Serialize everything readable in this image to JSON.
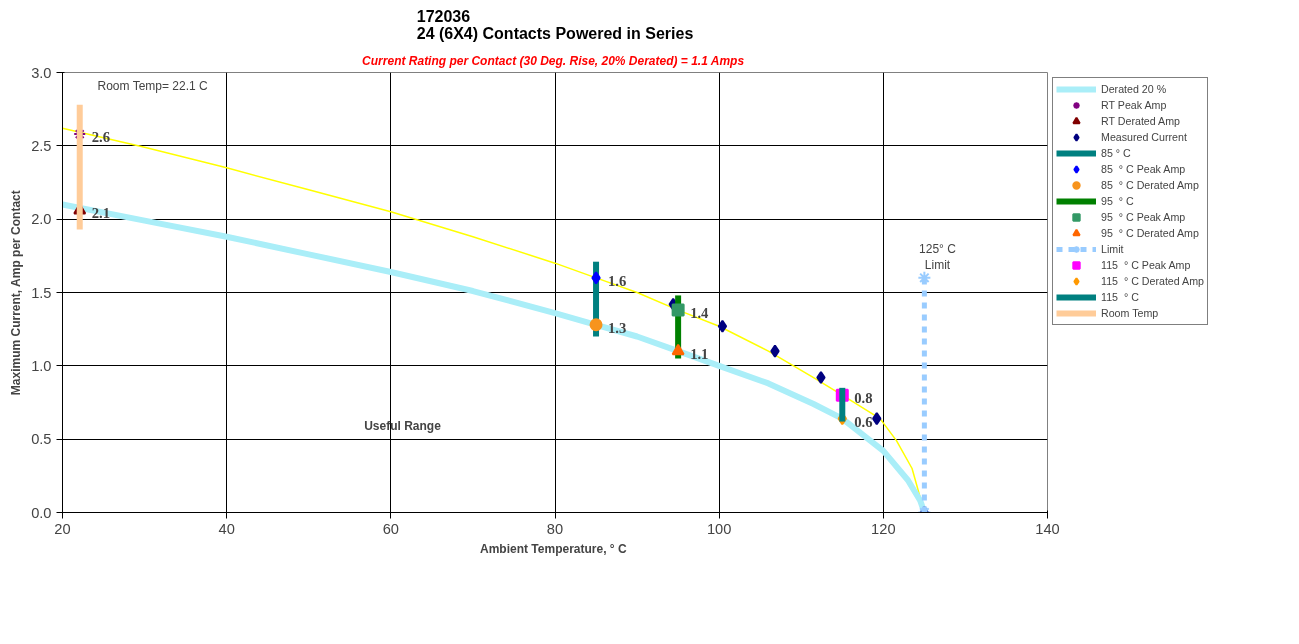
{
  "chart_data": {
    "type": "line",
    "title": "172036\n24 (6X4) Contacts Powered in Series",
    "subtitle": "Current Rating per Contact (30 Deg. Rise, 20% Derated)  = 1.1 Amps",
    "xlabel": "Ambient Temperature,  ° C",
    "ylabel": "Maximum Current, Amp per Contact",
    "xlim": [
      20,
      140
    ],
    "xticks": [
      20,
      40,
      60,
      80,
      100,
      120,
      140
    ],
    "ylim": [
      0,
      3
    ],
    "yticks": [
      {
        "value": 0,
        "label": "0.0"
      },
      0.5,
      {
        "value": 1,
        "label": "1.0"
      },
      1.5,
      {
        "value": 2,
        "label": "2.0"
      },
      2.5,
      {
        "value": 3,
        "label": "3.0"
      }
    ],
    "grid": true,
    "legend": "top right",
    "series": [
      {
        "color": "#ffff00",
        "marker": "none",
        "x": [
          20,
          30,
          40,
          50,
          60,
          70,
          80,
          85,
          90,
          95,
          100,
          106,
          111.5,
          115,
          119.6,
          121.6,
          123.5,
          125
        ],
        "values": [
          2.62,
          2.49,
          2.35,
          2.2,
          2.05,
          1.88,
          1.7,
          1.6,
          1.5,
          1.38,
          1.27,
          1.1,
          0.92,
          0.8,
          0.64,
          0.49,
          0.3,
          0
        ]
      },
      {
        "name": "Derated 20 %",
        "color": "#aaeef8",
        "marker": "none",
        "x": [
          20,
          30,
          40,
          50,
          60,
          70,
          80,
          85,
          90,
          95,
          100,
          106,
          111.5,
          115,
          120,
          123,
          124.5,
          125
        ],
        "values": [
          2.1,
          1.99,
          1.88,
          1.76,
          1.64,
          1.51,
          1.36,
          1.28,
          1.2,
          1.1,
          1.0,
          0.88,
          0.74,
          0.64,
          0.42,
          0.22,
          0.08,
          0
        ]
      },
      {
        "name": "RT Peak Amp",
        "type": "scatter",
        "color": "#800080",
        "marker": "cross",
        "x": [
          22.1
        ],
        "values": [
          2.58
        ],
        "value_labels": [
          "2.6"
        ]
      },
      {
        "name": "RT Derated Amp",
        "type": "scatter",
        "color": "#800000",
        "marker": "triangle",
        "x": [
          22.1
        ],
        "values": [
          2.06
        ],
        "value_labels": [
          "2.1"
        ]
      },
      {
        "name": "Measured Current",
        "type": "scatter",
        "color": "#000080",
        "marker": "diamond",
        "x": [
          94.4,
          100.4,
          106.8,
          112.4,
          119.2,
          125
        ],
        "values": [
          1.42,
          1.27,
          1.1,
          0.92,
          0.64,
          0
        ]
      },
      {
        "name": "85 ° C",
        "type": "line",
        "color": "#008080",
        "marker": "none",
        "x": [
          85,
          85
        ],
        "values": [
          1.2,
          1.71
        ]
      },
      {
        "name": "85  ° C Peak Amp",
        "type": "scatter",
        "color": "#0000ff",
        "marker": "diamond",
        "x": [
          85
        ],
        "values": [
          1.6
        ],
        "value_labels": [
          "1.6"
        ]
      },
      {
        "name": "85  ° C Derated Amp",
        "type": "scatter",
        "color": "#f7941d",
        "marker": "circle",
        "x": [
          85
        ],
        "values": [
          1.28
        ],
        "value_labels": [
          "1.3"
        ]
      },
      {
        "name": "95  ° C",
        "type": "line",
        "color": "#008000",
        "marker": "none",
        "x": [
          95,
          95
        ],
        "values": [
          1.05,
          1.48
        ]
      },
      {
        "name": "95  ° C Peak Amp",
        "type": "scatter",
        "color": "#339966",
        "marker": "square",
        "x": [
          95
        ],
        "values": [
          1.38
        ],
        "value_labels": [
          "1.4"
        ]
      },
      {
        "name": "95  ° C Derated Amp",
        "type": "scatter",
        "color": "#ff6600",
        "marker": "triangle",
        "x": [
          95
        ],
        "values": [
          1.1
        ],
        "value_labels": [
          "1.1"
        ]
      },
      {
        "name": "Limit",
        "type": "line",
        "color": "#99ccff",
        "marker": "cross",
        "line_style": "dashed",
        "x": [
          125,
          125
        ],
        "values": [
          0,
          1.6
        ]
      },
      {
        "name": "115  ° C Peak Amp",
        "type": "scatter",
        "color": "#ff00ff",
        "marker": "square",
        "x": [
          115
        ],
        "values": [
          0.8
        ],
        "value_labels": [
          "0.8"
        ]
      },
      {
        "name": "115  ° C Derated Amp",
        "type": "scatter",
        "color": "#ff9900",
        "marker": "diamond",
        "x": [
          115
        ],
        "values": [
          0.64
        ],
        "value_labels": [
          "0.6"
        ]
      },
      {
        "name": "115  ° C",
        "type": "line",
        "color": "#008080",
        "marker": "none",
        "x": [
          115,
          115
        ],
        "values": [
          0.62,
          0.85
        ]
      },
      {
        "name": "Room Temp",
        "type": "line",
        "color": "#ffcc99",
        "marker": "none",
        "x": [
          22.1,
          22.1
        ],
        "values": [
          1.93,
          2.78
        ]
      }
    ],
    "annotations": [
      "Room Temp= 22.1 C",
      "125° C\nLimit",
      "Useful Range"
    ]
  }
}
